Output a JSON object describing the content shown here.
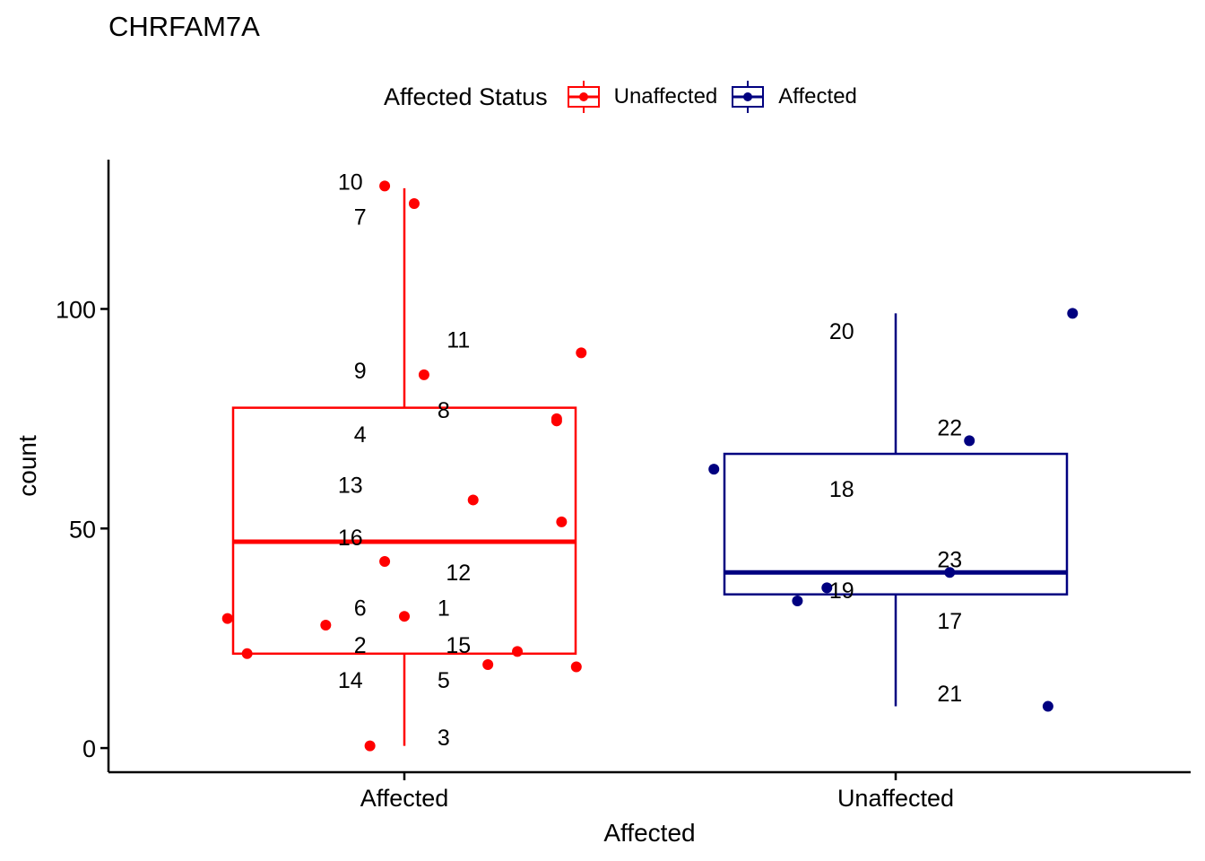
{
  "chart_data": {
    "type": "box",
    "title": "CHRFAM7A",
    "xlabel": "Affected",
    "ylabel": "count",
    "ylim": [
      -5.5,
      134
    ],
    "yticks": [
      0,
      50,
      100
    ],
    "categories": [
      "Affected",
      "Unaffected"
    ],
    "legend": {
      "title": "Affected Status",
      "position": "top",
      "entries": [
        {
          "label": "Unaffected",
          "color": "#ff0000"
        },
        {
          "label": "Affected",
          "color": "#000080"
        }
      ]
    },
    "boxes": [
      {
        "category": "Affected",
        "color": "#ff0000",
        "whisker_low": 0.5,
        "q1": 21.5,
        "median": 47,
        "q3": 77.5,
        "whisker_high": 127.5
      },
      {
        "category": "Unaffected",
        "color": "#000080",
        "whisker_low": 9.5,
        "q1": 35,
        "median": 40,
        "q3": 67,
        "whisker_high": 99
      }
    ],
    "points": [
      {
        "id": "1",
        "group": 0,
        "jitter": 0.0,
        "y": 30
      },
      {
        "id": "2",
        "group": 0,
        "jitter": -0.16,
        "y": 28
      },
      {
        "id": "3",
        "group": 0,
        "jitter": -0.07,
        "y": 0.5
      },
      {
        "id": "4",
        "group": 0,
        "jitter": 0.31,
        "y": 75
      },
      {
        "id": "5",
        "group": 0,
        "jitter": 0.17,
        "y": 19
      },
      {
        "id": "6",
        "group": 0,
        "jitter": -0.36,
        "y": 29.5
      },
      {
        "id": "7",
        "group": 0,
        "jitter": 0.02,
        "y": 124
      },
      {
        "id": "8",
        "group": 0,
        "jitter": 0.31,
        "y": 74.5
      },
      {
        "id": "9",
        "group": 0,
        "jitter": 0.04,
        "y": 85
      },
      {
        "id": "10",
        "group": 0,
        "jitter": -0.04,
        "y": 128
      },
      {
        "id": "11",
        "group": 0,
        "jitter": 0.36,
        "y": 90
      },
      {
        "id": "12",
        "group": 0,
        "jitter": -0.04,
        "y": 42.5
      },
      {
        "id": "13",
        "group": 0,
        "jitter": 0.14,
        "y": 56.5
      },
      {
        "id": "14",
        "group": 0,
        "jitter": 0.35,
        "y": 18.5
      },
      {
        "id": "15",
        "group": 0,
        "jitter": 0.23,
        "y": 22
      },
      {
        "id": "16",
        "group": 0,
        "jitter": 0.32,
        "y": 51.5
      },
      {
        "id": "17",
        "group": 1,
        "jitter": -0.2,
        "y": 33.5
      },
      {
        "id": "18",
        "group": 1,
        "jitter": -0.37,
        "y": 63.5
      },
      {
        "id": "19",
        "group": 1,
        "jitter": -0.14,
        "y": 36.5
      },
      {
        "id": "20",
        "group": 1,
        "jitter": 0.36,
        "y": 99
      },
      {
        "id": "21",
        "group": 1,
        "jitter": 0.31,
        "y": 9.5
      },
      {
        "id": "22",
        "group": 1,
        "jitter": 0.15,
        "y": 70
      },
      {
        "id": "23",
        "group": 1,
        "jitter": 0.11,
        "y": 40
      },
      {
        "id": "24",
        "group": 0,
        "jitter": -0.32,
        "y": 21.5
      }
    ],
    "labels": [
      {
        "text": "10",
        "group": 0,
        "offset": -0.11,
        "y": 129
      },
      {
        "text": "7",
        "group": 0,
        "offset": -0.09,
        "y": 121
      },
      {
        "text": "11",
        "group": 0,
        "offset": 0.11,
        "y": 93
      },
      {
        "text": "9",
        "group": 0,
        "offset": -0.09,
        "y": 86
      },
      {
        "text": "8",
        "group": 0,
        "offset": 0.08,
        "y": 77
      },
      {
        "text": "4",
        "group": 0,
        "offset": -0.09,
        "y": 71.5
      },
      {
        "text": "13",
        "group": 0,
        "offset": -0.11,
        "y": 60
      },
      {
        "text": "16",
        "group": 0,
        "offset": -0.11,
        "y": 48
      },
      {
        "text": "12",
        "group": 0,
        "offset": 0.11,
        "y": 40
      },
      {
        "text": "6",
        "group": 0,
        "offset": -0.09,
        "y": 32
      },
      {
        "text": "1",
        "group": 0,
        "offset": 0.08,
        "y": 32
      },
      {
        "text": "2",
        "group": 0,
        "offset": -0.09,
        "y": 23.5
      },
      {
        "text": "15",
        "group": 0,
        "offset": 0.11,
        "y": 23.5
      },
      {
        "text": "14",
        "group": 0,
        "offset": -0.11,
        "y": 15.5
      },
      {
        "text": "5",
        "group": 0,
        "offset": 0.08,
        "y": 15.5
      },
      {
        "text": "3",
        "group": 0,
        "offset": 0.08,
        "y": 2.5
      },
      {
        "text": "20",
        "group": 1,
        "offset": -0.11,
        "y": 95
      },
      {
        "text": "22",
        "group": 1,
        "offset": 0.11,
        "y": 73
      },
      {
        "text": "18",
        "group": 1,
        "offset": -0.11,
        "y": 59
      },
      {
        "text": "23",
        "group": 1,
        "offset": 0.11,
        "y": 43
      },
      {
        "text": "19",
        "group": 1,
        "offset": -0.11,
        "y": 36
      },
      {
        "text": "17",
        "group": 1,
        "offset": 0.11,
        "y": 29
      },
      {
        "text": "21",
        "group": 1,
        "offset": 0.11,
        "y": 12.5
      }
    ]
  }
}
